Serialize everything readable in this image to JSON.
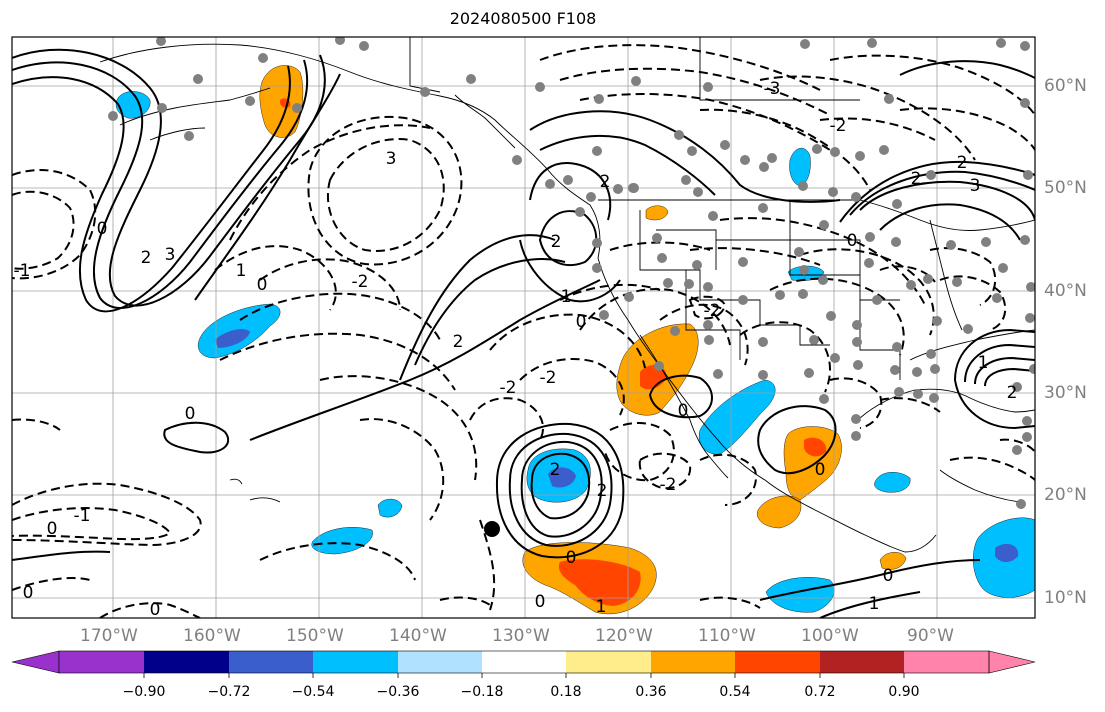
{
  "title": "2024080500 F108",
  "map": {
    "projection": "cylindrical",
    "lon_range": [
      "180°W",
      "82°W"
    ],
    "lat_range": [
      "8°N",
      "64°N"
    ],
    "background": "#ffffff",
    "coastline_color": "#000000",
    "gridline_color": "#a0a0a0",
    "contour_color": "#000000",
    "station_dot_color": "#808080"
  },
  "lon_labels": [
    "170°W",
    "160°W",
    "150°W",
    "140°W",
    "130°W",
    "120°W",
    "110°W",
    "100°W",
    "90°W"
  ],
  "lat_labels": [
    "60°N",
    "50°N",
    "40°N",
    "30°N",
    "20°N",
    "10°N"
  ],
  "contour_labels": [
    "0",
    "1",
    "2",
    "3",
    "-1",
    "-2",
    "-3"
  ],
  "colorbar": {
    "ticks": [
      "−0.90",
      "−0.72",
      "−0.54",
      "−0.36",
      "−0.18",
      "0.18",
      "0.36",
      "0.54",
      "0.72",
      "0.90"
    ],
    "colors": [
      "#9932cc",
      "#00008b",
      "#3a5fcd",
      "#00bfff",
      "#b0e2ff",
      "#ffffff",
      "#ffec8b",
      "#ffa500",
      "#ff4500",
      "#b22222",
      "#ff83aa"
    ]
  },
  "shaded_regions": [
    {
      "name": "gulf-of-alaska-north",
      "colors": [
        "#00bfff"
      ]
    },
    {
      "name": "bering-sea",
      "colors": [
        "#00bfff"
      ]
    },
    {
      "name": "alaska-warm",
      "colors": [
        "#ffa500"
      ]
    },
    {
      "name": "north-pacific-cold",
      "colors": [
        "#00bfff",
        "#3a5fcd"
      ]
    },
    {
      "name": "central-pacific-cold-1",
      "colors": [
        "#00bfff"
      ]
    },
    {
      "name": "central-pacific-cold-2",
      "colors": [
        "#00bfff"
      ]
    },
    {
      "name": "eastern-pacific-low",
      "colors": [
        "#00bfff",
        "#3a5fcd"
      ]
    },
    {
      "name": "eastern-pacific-warm",
      "colors": [
        "#ffa500",
        "#ff4500"
      ]
    },
    {
      "name": "southwest-us-warm",
      "colors": [
        "#ffa500",
        "#ff4500"
      ]
    },
    {
      "name": "mexico-cold",
      "colors": [
        "#00bfff"
      ]
    },
    {
      "name": "central-mexico-warm",
      "colors": [
        "#ffa500",
        "#ff4500"
      ]
    },
    {
      "name": "mexico-warm-south",
      "colors": [
        "#ffa500"
      ]
    },
    {
      "name": "gulf-cold",
      "colors": [
        "#00bfff"
      ]
    },
    {
      "name": "caribbean-cold",
      "colors": [
        "#00bfff",
        "#3a5fcd"
      ]
    },
    {
      "name": "southern-mexico-cold",
      "colors": [
        "#00bfff"
      ]
    },
    {
      "name": "plains-cold",
      "colors": [
        "#00bfff"
      ]
    },
    {
      "name": "canada-cold",
      "colors": [
        "#00bfff"
      ]
    },
    {
      "name": "pacific-northwest-warm",
      "colors": [
        "#ffa500"
      ]
    },
    {
      "name": "central-america-warm",
      "colors": [
        "#ffa500"
      ]
    }
  ]
}
